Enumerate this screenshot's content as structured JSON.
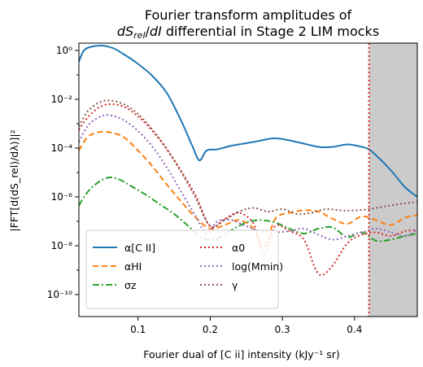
{
  "chart_data": {
    "type": "line",
    "title": [
      "Fourier transform amplitudes of",
      "dS_rel/dI differential in Stage 2 LIM mocks"
    ],
    "xlabel": "Fourier dual of [C ii] intensity (kJy⁻¹ sr)",
    "ylabel": "|FFT[d(dS_rel)/dλ)]|²",
    "xlim": [
      0.018,
      0.487
    ],
    "ylim_log10": [
      -10.9,
      0.3
    ],
    "yscale": "log",
    "x_ticks": [
      0.1,
      0.2,
      0.3,
      0.4
    ],
    "x_tick_labels": [
      "0.1",
      "0.2",
      "0.3",
      "0.4"
    ],
    "y_ticks_log10": [
      0,
      -2,
      -4,
      -6,
      -8,
      -10
    ],
    "y_tick_labels": [
      "10⁰",
      "10⁻²",
      "10⁻⁴",
      "10⁻⁶",
      "10⁻⁸",
      "10⁻¹⁰"
    ],
    "grid": false,
    "cutoff_x": 0.42,
    "shaded_region": [
      0.42,
      0.487
    ],
    "legend_position": "lower-left",
    "series": [
      {
        "name": "α[C II]",
        "color": "#1f77b4",
        "dash": "solid",
        "x": [
          0.018,
          0.025,
          0.035,
          0.05,
          0.065,
          0.08,
          0.1,
          0.12,
          0.14,
          0.16,
          0.175,
          0.185,
          0.195,
          0.21,
          0.23,
          0.26,
          0.29,
          0.32,
          0.35,
          0.37,
          0.39,
          0.41,
          0.42,
          0.43,
          0.45,
          0.47,
          0.487
        ],
        "y": [
          -0.45,
          0.0,
          0.15,
          0.2,
          0.1,
          -0.15,
          -0.55,
          -1.05,
          -1.75,
          -2.9,
          -3.9,
          -4.5,
          -4.1,
          -4.05,
          -3.9,
          -3.75,
          -3.6,
          -3.75,
          -3.95,
          -3.95,
          -3.85,
          -3.95,
          -4.05,
          -4.3,
          -4.9,
          -5.6,
          -6.0
        ]
      },
      {
        "name": "αHI",
        "color": "#ff7f0e",
        "dash": "dashed",
        "x": [
          0.018,
          0.03,
          0.045,
          0.06,
          0.08,
          0.1,
          0.12,
          0.14,
          0.16,
          0.18,
          0.2,
          0.22,
          0.24,
          0.26,
          0.275,
          0.29,
          0.31,
          0.33,
          0.35,
          0.37,
          0.39,
          0.41,
          0.43,
          0.45,
          0.47,
          0.487
        ],
        "y": [
          -4.1,
          -3.55,
          -3.35,
          -3.35,
          -3.55,
          -4.1,
          -4.75,
          -5.5,
          -6.2,
          -6.85,
          -7.3,
          -7.15,
          -6.95,
          -7.3,
          -8.05,
          -6.9,
          -6.65,
          -6.55,
          -6.6,
          -6.9,
          -7.1,
          -6.8,
          -6.95,
          -7.15,
          -6.85,
          -6.75
        ]
      },
      {
        "name": "σz",
        "color": "#2ca02c",
        "dash": "dashdot",
        "x": [
          0.018,
          0.03,
          0.045,
          0.06,
          0.075,
          0.09,
          0.11,
          0.13,
          0.15,
          0.17,
          0.19,
          0.21,
          0.23,
          0.25,
          0.27,
          0.29,
          0.31,
          0.33,
          0.35,
          0.37,
          0.39,
          0.41,
          0.43,
          0.45,
          0.47,
          0.487
        ],
        "y": [
          -6.35,
          -5.8,
          -5.4,
          -5.2,
          -5.3,
          -5.55,
          -5.9,
          -6.3,
          -6.7,
          -7.2,
          -7.7,
          -7.7,
          -7.35,
          -7.05,
          -6.95,
          -7.05,
          -7.3,
          -7.5,
          -7.3,
          -7.25,
          -7.65,
          -7.45,
          -7.8,
          -7.75,
          -7.6,
          -7.5
        ]
      },
      {
        "name": "α0",
        "color": "#d62728",
        "dash": "dotted",
        "x": [
          0.018,
          0.03,
          0.045,
          0.06,
          0.08,
          0.1,
          0.12,
          0.14,
          0.16,
          0.18,
          0.2,
          0.22,
          0.24,
          0.26,
          0.275,
          0.29,
          0.31,
          0.33,
          0.345,
          0.355,
          0.37,
          0.39,
          0.41,
          0.43,
          0.45,
          0.47,
          0.487
        ],
        "y": [
          -3.25,
          -2.75,
          -2.35,
          -2.2,
          -2.3,
          -2.7,
          -3.3,
          -4.05,
          -4.95,
          -5.95,
          -7.2,
          -6.9,
          -6.65,
          -7.1,
          -8.3,
          -7.2,
          -7.4,
          -7.75,
          -8.9,
          -9.2,
          -8.8,
          -7.9,
          -7.55,
          -7.45,
          -7.6,
          -7.4,
          -7.35
        ]
      },
      {
        "name": "log(Mmin)",
        "color": "#9467bd",
        "dash": "dotted",
        "x": [
          0.018,
          0.03,
          0.045,
          0.06,
          0.08,
          0.1,
          0.12,
          0.14,
          0.16,
          0.18,
          0.195,
          0.21,
          0.23,
          0.25,
          0.27,
          0.29,
          0.31,
          0.33,
          0.35,
          0.37,
          0.39,
          0.41,
          0.43,
          0.45,
          0.47,
          0.487
        ],
        "y": [
          -3.75,
          -3.1,
          -2.75,
          -2.65,
          -2.85,
          -3.3,
          -3.95,
          -4.8,
          -5.8,
          -6.8,
          -7.5,
          -7.0,
          -6.95,
          -7.2,
          -7.4,
          -7.45,
          -7.4,
          -7.3,
          -7.55,
          -7.75,
          -7.6,
          -7.45,
          -7.3,
          -7.45,
          -7.6,
          -7.35
        ]
      },
      {
        "name": "γ",
        "color": "#8c564b",
        "dash": "dotted",
        "x": [
          0.018,
          0.03,
          0.045,
          0.06,
          0.08,
          0.1,
          0.12,
          0.14,
          0.16,
          0.18,
          0.2,
          0.22,
          0.24,
          0.26,
          0.28,
          0.3,
          0.32,
          0.34,
          0.36,
          0.38,
          0.4,
          0.42,
          0.44,
          0.46,
          0.487
        ],
        "y": [
          -3.1,
          -2.5,
          -2.15,
          -2.05,
          -2.2,
          -2.6,
          -3.25,
          -4.05,
          -5.0,
          -6.05,
          -7.2,
          -6.95,
          -6.6,
          -6.45,
          -6.6,
          -6.5,
          -6.7,
          -6.65,
          -6.5,
          -6.55,
          -6.55,
          -6.5,
          -6.4,
          -6.3,
          -6.2
        ]
      }
    ]
  }
}
